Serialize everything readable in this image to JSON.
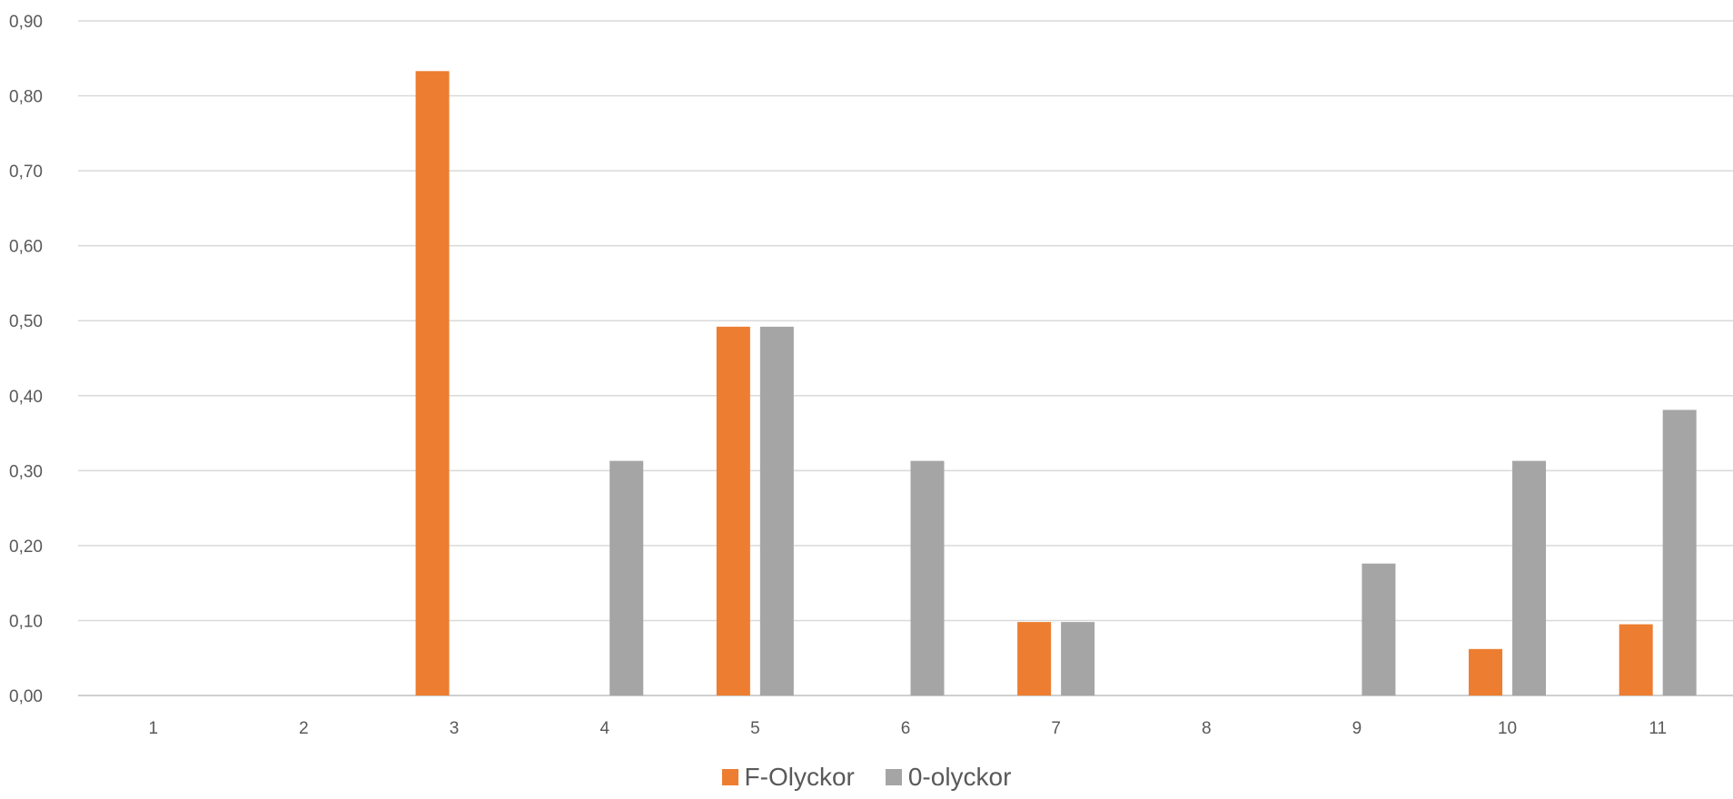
{
  "chart_data": {
    "type": "bar",
    "title": "",
    "xlabel": "",
    "ylabel": "",
    "categories": [
      "1",
      "2",
      "3",
      "4",
      "5",
      "6",
      "7",
      "8",
      "9",
      "10",
      "11"
    ],
    "ylim": [
      0,
      0.9
    ],
    "yticks": [
      "0,00",
      "0,10",
      "0,20",
      "0,30",
      "0,40",
      "0,50",
      "0,60",
      "0,70",
      "0,80",
      "0,90"
    ],
    "grid": true,
    "legend_position": "bottom",
    "series": [
      {
        "name": "F-Olyckor",
        "color": "#ED7D31",
        "values": [
          0,
          0,
          0.833,
          0,
          0.492,
          0,
          0.098,
          0,
          0,
          0.062,
          0.095
        ]
      },
      {
        "name": "0-olyckor",
        "color": "#A5A5A5",
        "values": [
          0,
          0,
          0,
          0.313,
          0.492,
          0.313,
          0.098,
          0,
          0.176,
          0.313,
          0.381
        ]
      }
    ]
  }
}
